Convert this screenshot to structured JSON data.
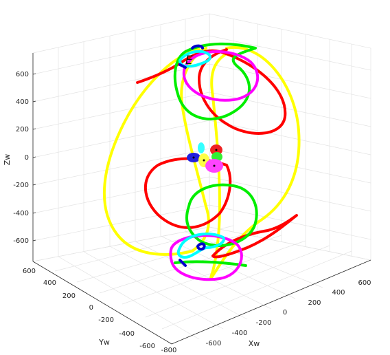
{
  "chart_data": {
    "type": "line3d",
    "axes": {
      "x": {
        "label": "Xw",
        "ticks": [
          -800,
          -600,
          -400,
          -200,
          0,
          200,
          400,
          600
        ]
      },
      "y": {
        "label": "Yw",
        "ticks": [
          -600,
          -400,
          -200,
          0,
          200,
          400,
          600
        ]
      },
      "z": {
        "label": "Zw",
        "ticks": [
          -600,
          -400,
          -200,
          0,
          200,
          400,
          600
        ]
      }
    },
    "grid": true,
    "annotations": [
      "E"
    ],
    "series": [
      {
        "color": "#ffff00"
      },
      {
        "color": "#ff0000"
      },
      {
        "color": "#00ee00"
      },
      {
        "color": "#ff00ff"
      },
      {
        "color": "#00ffff"
      },
      {
        "color": "#0000cc"
      }
    ]
  }
}
